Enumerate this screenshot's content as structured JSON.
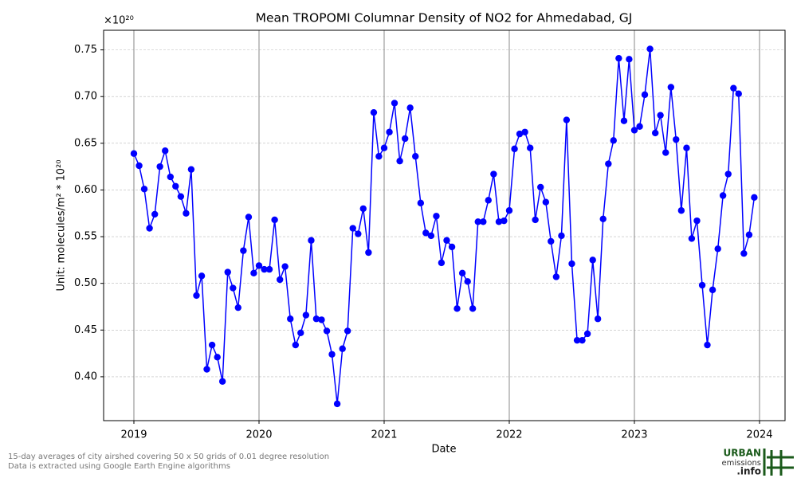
{
  "chart_data": {
    "type": "line",
    "title": "Mean TROPOMI Columnar Density of NO2 for Ahmedabad, GJ",
    "x_label": "Date",
    "y_label": "Unit: molecules/m² * 10²⁰",
    "y_offset_label": "×10²⁰",
    "footnotes": [
      "15-day averages of city airshed covering 50 x 50 grids of 0.01 degree resolution",
      "Data is extracted using Google Earth Engine algorithms"
    ],
    "logo": [
      "URBAN",
      "emissions",
      ".info"
    ],
    "xlim": [
      2018.758,
      2024.204
    ],
    "xticks": [
      2019,
      2020,
      2021,
      2022,
      2023,
      2024
    ],
    "ylim": [
      0.353,
      0.771
    ],
    "yticks": [
      {
        "value": 0.4,
        "label": "0.40"
      },
      0.45,
      {
        "value": 0.5,
        "label": "0.50"
      },
      0.55,
      {
        "value": 0.6,
        "label": "0.60"
      },
      0.65,
      {
        "value": 0.7,
        "label": "0.70"
      },
      0.75
    ],
    "grid": true,
    "series": [
      {
        "name": "NO2",
        "color": "#0000ff",
        "x": [
          2019,
          2019.042,
          2019.083,
          2019.125,
          2019.167,
          2019.208,
          2019.25,
          2019.292,
          2019.333,
          2019.375,
          2019.417,
          2019.458,
          2019.5,
          2019.542,
          2019.583,
          2019.625,
          2019.667,
          2019.708,
          2019.75,
          2019.792,
          2019.833,
          2019.875,
          2019.917,
          2019.958,
          2020,
          2020.042,
          2020.083,
          2020.125,
          2020.167,
          2020.208,
          2020.25,
          2020.292,
          2020.333,
          2020.375,
          2020.417,
          2020.458,
          2020.5,
          2020.542,
          2020.583,
          2020.625,
          2020.667,
          2020.708,
          2020.75,
          2020.792,
          2020.833,
          2020.875,
          2020.917,
          2020.958,
          2021,
          2021.042,
          2021.083,
          2021.125,
          2021.167,
          2021.208,
          2021.25,
          2021.292,
          2021.333,
          2021.375,
          2021.417,
          2021.458,
          2021.5,
          2021.542,
          2021.583,
          2021.625,
          2021.667,
          2021.708,
          2021.75,
          2021.792,
          2021.833,
          2021.875,
          2021.917,
          2021.958,
          2022,
          2022.042,
          2022.083,
          2022.125,
          2022.167,
          2022.208,
          2022.25,
          2022.292,
          2022.333,
          2022.375,
          2022.417,
          2022.458,
          2022.5,
          2022.542,
          2022.583,
          2022.625,
          2022.667,
          2022.708,
          2022.75,
          2022.792,
          2022.833,
          2022.875,
          2022.917,
          2022.958,
          2023,
          2023.042,
          2023.083,
          2023.125,
          2023.167,
          2023.208,
          2023.25,
          2023.292,
          2023.333,
          2023.375,
          2023.417,
          2023.458,
          2023.5,
          2023.542,
          2023.583,
          2023.625,
          2023.667,
          2023.708,
          2023.75,
          2023.792,
          2023.833,
          2023.875,
          2023.917,
          2023.958
        ],
        "values": [
          0.639,
          0.626,
          0.601,
          0.559,
          0.574,
          0.625,
          0.642,
          0.614,
          0.604,
          0.593,
          0.575,
          0.622,
          0.487,
          0.508,
          0.408,
          0.434,
          0.421,
          0.395,
          0.512,
          0.495,
          0.474,
          0.535,
          0.571,
          0.511,
          0.519,
          0.515,
          0.515,
          0.568,
          0.504,
          0.518,
          0.462,
          0.434,
          0.447,
          0.466,
          0.546,
          0.462,
          0.461,
          0.449,
          0.424,
          0.371,
          0.43,
          0.449,
          0.559,
          0.553,
          0.58,
          0.533,
          0.683,
          0.636,
          0.645,
          0.662,
          0.693,
          0.631,
          0.655,
          0.688,
          0.636,
          0.586,
          0.554,
          0.551,
          0.572,
          0.522,
          0.546,
          0.539,
          0.473,
          0.511,
          0.502,
          0.473,
          0.566,
          0.566,
          0.589,
          0.617,
          0.566,
          0.567,
          0.578,
          0.644,
          0.66,
          0.662,
          0.645,
          0.568,
          0.603,
          0.587,
          0.545,
          0.507,
          0.551,
          0.675,
          0.521,
          0.439,
          0.439,
          0.446,
          0.525,
          0.462,
          0.569,
          0.628,
          0.653,
          0.741,
          0.674,
          0.74,
          0.664,
          0.668,
          0.702,
          0.751,
          0.661,
          0.68,
          0.64,
          0.71,
          0.654,
          0.578,
          0.645,
          0.548,
          0.567,
          0.498,
          0.434,
          0.493,
          0.537,
          0.594,
          0.617,
          0.709,
          0.703,
          0.532,
          0.552,
          0.592
        ]
      }
    ]
  }
}
